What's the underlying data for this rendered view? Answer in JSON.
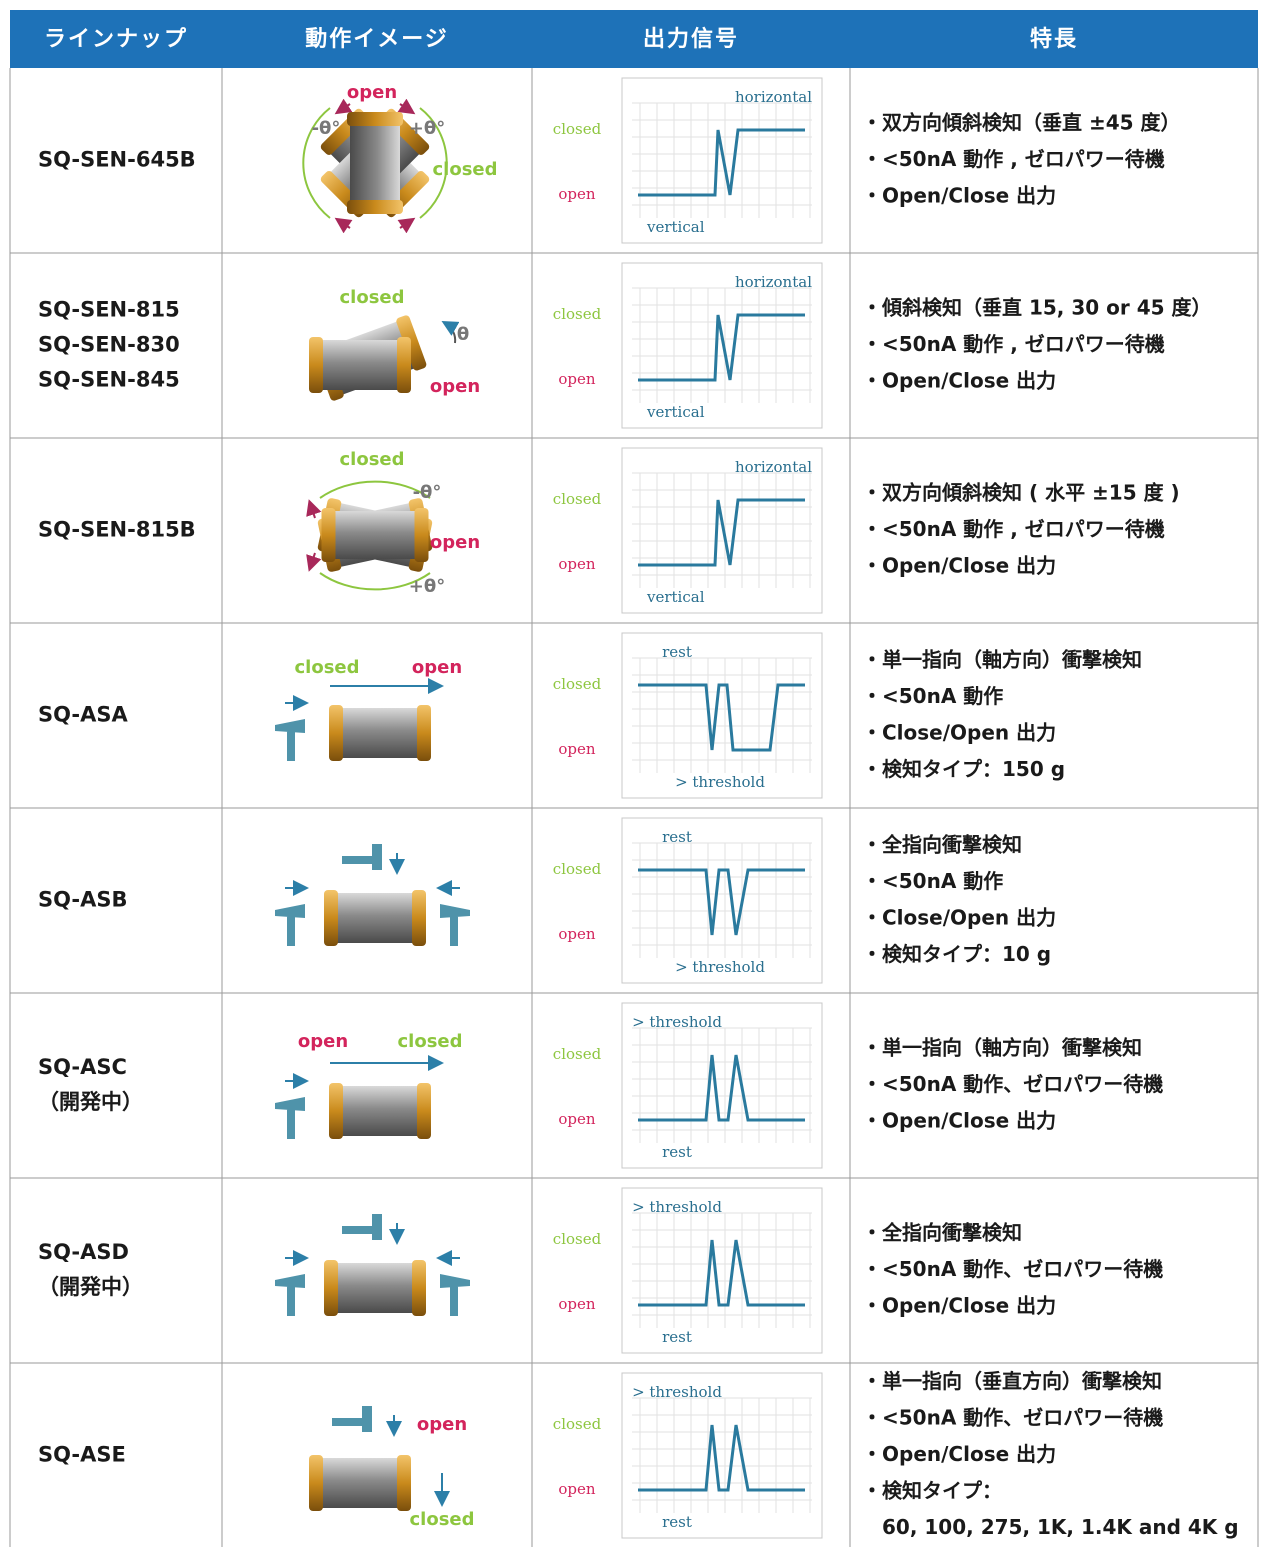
{
  "header": {
    "columns": [
      "ラインナップ",
      "動作イメージ",
      "出力信号",
      "特長"
    ]
  },
  "rows": [
    {
      "models": [
        "SQ-SEN-645B"
      ],
      "image": {
        "labels": [
          "open",
          "-θ°",
          "+θ°",
          "closed"
        ]
      },
      "signal": {
        "top": "horizontal",
        "closed": "closed",
        "open": "open",
        "bottom": "vertical"
      },
      "features": [
        "・双方向傾斜検知（垂直 ±45 度）",
        "・<50nA 動作 , ゼロパワー待機",
        "・Open/Close 出力"
      ]
    },
    {
      "models": [
        "SQ-SEN-815",
        "SQ-SEN-830",
        "SQ-SEN-845"
      ],
      "image": {
        "labels": [
          "closed",
          "θ",
          "open"
        ]
      },
      "signal": {
        "top": "horizontal",
        "closed": "closed",
        "open": "open",
        "bottom": "vertical"
      },
      "features": [
        "・傾斜検知（垂直 15, 30 or 45 度）",
        "・<50nA 動作 , ゼロパワー待機",
        "・Open/Close 出力"
      ]
    },
    {
      "models": [
        "SQ-SEN-815B"
      ],
      "image": {
        "labels": [
          "closed",
          "-θ°",
          "open",
          "+θ°"
        ]
      },
      "signal": {
        "top": "horizontal",
        "closed": "closed",
        "open": "open",
        "bottom": "vertical"
      },
      "features": [
        "・双方向傾斜検知 ( 水平 ±15 度 )",
        "・<50nA 動作 , ゼロパワー待機",
        "・Open/Close 出力"
      ]
    },
    {
      "models": [
        "SQ-ASA"
      ],
      "image": {
        "labels": [
          "closed",
          "open"
        ]
      },
      "signal": {
        "top": "rest",
        "closed": "closed",
        "open": "open",
        "bottom": "> threshold"
      },
      "features": [
        "・単一指向（軸方向）衝撃検知",
        "・<50nA 動作",
        "・Close/Open 出力",
        "・検知タイプ：150 g"
      ]
    },
    {
      "models": [
        "SQ-ASB"
      ],
      "signal": {
        "top": "rest",
        "closed": "closed",
        "open": "open",
        "bottom": "> threshold"
      },
      "features": [
        "・全指向衝撃検知",
        "・<50nA 動作",
        "・Close/Open 出力",
        "・検知タイプ：10 g"
      ]
    },
    {
      "models": [
        "SQ-ASC",
        "（開発中）"
      ],
      "image": {
        "labels": [
          "open",
          "closed"
        ]
      },
      "signal": {
        "top": "> threshold",
        "closed": "closed",
        "open": "open",
        "bottom": "rest"
      },
      "features": [
        "・単一指向（軸方向）衝撃検知",
        "・<50nA 動作、ゼロパワー待機",
        "・Open/Close 出力"
      ]
    },
    {
      "models": [
        "SQ-ASD",
        "（開発中）"
      ],
      "signal": {
        "top": "> threshold",
        "closed": "closed",
        "open": "open",
        "bottom": "rest"
      },
      "features": [
        "・全指向衝撃検知",
        "・<50nA 動作、ゼロパワー待機",
        "・Open/Close 出力"
      ]
    },
    {
      "models": [
        "SQ-ASE"
      ],
      "image": {
        "labels": [
          "open",
          "closed"
        ]
      },
      "signal": {
        "top": "> threshold",
        "closed": "closed",
        "open": "open",
        "bottom": "rest"
      },
      "features": [
        "・単一指向（垂直方向）衝撃検知",
        "・<50nA 動作、ゼロパワー待機",
        "・Open/Close 出力",
        "・検知タイプ：",
        "　60, 100, 275, 1K, 1.4K and 4K g"
      ]
    }
  ]
}
